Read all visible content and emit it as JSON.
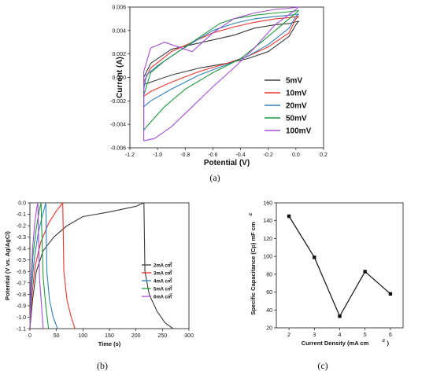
{
  "chart_data": [
    {
      "panel": "a",
      "caption": "(a)",
      "type": "line",
      "xlabel": "Potential (V)",
      "ylabel": "Current (A)",
      "xlim": [
        -1.2,
        0.2
      ],
      "ylim": [
        -0.006,
        0.006
      ],
      "xticks": [
        "-1.2",
        "-1.0",
        "-0.8",
        "-0.6",
        "-0.4",
        "-0.2",
        "0.0",
        "0.2"
      ],
      "yticks": [
        "-0.006",
        "-0.004",
        "-0.002",
        "0.000",
        "0.002",
        "0.004",
        "0.006"
      ],
      "legend_position": "bottom-right",
      "series": [
        {
          "name": "5mV",
          "color": "#3a3a3a",
          "x": [
            -1.1,
            -1.05,
            -0.9,
            -0.7,
            -0.5,
            -0.35,
            -0.2,
            -0.05,
            0.0,
            0.02,
            -0.05,
            -0.15,
            -0.3,
            -0.45,
            -0.6,
            -0.75,
            -0.9,
            -1.05,
            -1.1,
            -1.1
          ],
          "y": [
            -0.0006,
            -0.0004,
            0.0002,
            0.0008,
            0.0012,
            0.0016,
            0.0022,
            0.0035,
            0.0045,
            0.0048,
            0.0046,
            0.0045,
            0.0042,
            0.0036,
            0.0032,
            0.0028,
            0.0024,
            0.0012,
            0.0,
            -0.0006
          ]
        },
        {
          "name": "10mV",
          "color": "#e8332a",
          "x": [
            -1.1,
            -1.05,
            -0.9,
            -0.7,
            -0.5,
            -0.35,
            -0.2,
            -0.05,
            0.0,
            0.02,
            -0.05,
            -0.15,
            -0.3,
            -0.45,
            -0.6,
            -0.75,
            -0.9,
            -1.05,
            -1.1,
            -1.1
          ],
          "y": [
            -0.0016,
            -0.0012,
            -0.0004,
            0.0005,
            0.0012,
            0.0018,
            0.0026,
            0.0038,
            0.005,
            0.0052,
            0.0051,
            0.005,
            0.0047,
            0.0043,
            0.0038,
            0.003,
            0.0022,
            0.0008,
            -0.0004,
            -0.0016
          ]
        },
        {
          "name": "20mV",
          "color": "#2f7fc1",
          "x": [
            -1.1,
            -1.05,
            -0.9,
            -0.7,
            -0.5,
            -0.35,
            -0.2,
            -0.05,
            0.0,
            0.02,
            -0.05,
            -0.15,
            -0.3,
            -0.45,
            -0.6,
            -0.7,
            -0.85,
            -1.0,
            -1.08,
            -1.1,
            -1.1
          ],
          "y": [
            -0.0025,
            -0.002,
            -0.001,
            0.0002,
            0.0011,
            0.0018,
            0.0028,
            0.0042,
            0.0052,
            0.0054,
            0.0053,
            0.0052,
            0.005,
            0.0046,
            0.004,
            0.0033,
            0.0022,
            0.001,
            0.0002,
            -0.001,
            -0.0025
          ]
        },
        {
          "name": "50mV",
          "color": "#1f9a3a",
          "x": [
            -1.1,
            -1.05,
            -0.95,
            -0.8,
            -0.6,
            -0.4,
            -0.25,
            -0.1,
            0.0,
            0.02,
            -0.05,
            -0.15,
            -0.3,
            -0.45,
            -0.55,
            -0.65,
            -0.8,
            -0.95,
            -1.05,
            -1.1,
            -1.1
          ],
          "y": [
            -0.0045,
            -0.0038,
            -0.0025,
            -0.001,
            0.0004,
            0.0016,
            0.003,
            0.0045,
            0.0055,
            0.0057,
            0.0056,
            0.0055,
            0.0053,
            0.005,
            0.0046,
            0.0038,
            0.0026,
            0.0014,
            0.0004,
            -0.0015,
            -0.0045
          ]
        },
        {
          "name": "100mV",
          "color": "#a64dd6",
          "x": [
            -1.1,
            -1.02,
            -0.9,
            -0.75,
            -0.6,
            -0.45,
            -0.3,
            -0.15,
            0.0,
            0.02,
            -0.05,
            -0.15,
            -0.3,
            -0.45,
            -0.6,
            -0.75,
            -0.85,
            -0.95,
            -1.05,
            -1.1,
            -1.1
          ],
          "y": [
            -0.0054,
            -0.0052,
            -0.0042,
            -0.0025,
            -0.0008,
            0.0008,
            0.0025,
            0.0045,
            0.0058,
            0.006,
            0.0059,
            0.0058,
            0.0055,
            0.005,
            0.0038,
            0.0022,
            0.0026,
            0.003,
            0.0025,
            0.0005,
            -0.0054
          ]
        }
      ]
    },
    {
      "panel": "b",
      "caption": "(b)",
      "type": "line",
      "xlabel": "Time (s)",
      "ylabel": "Potential (V vs. Ag/AgCl)",
      "xlim": [
        0,
        300
      ],
      "ylim": [
        -1.1,
        0.0
      ],
      "xticks": [
        "0",
        "50",
        "100",
        "150",
        "200",
        "250",
        "300"
      ],
      "yticks": [
        "-1.1",
        "-1.0",
        "-0.9",
        "-0.8",
        "-0.7",
        "-0.6",
        "-0.5",
        "-0.4",
        "-0.3",
        "-0.2",
        "-0.1",
        "0.0"
      ],
      "legend_position": "center-right",
      "series": [
        {
          "name": "2mA cm",
          "superscript": "-2",
          "color": "#3a3a3a",
          "x": [
            0,
            5,
            12,
            25,
            45,
            70,
            100,
            150,
            200,
            215,
            217,
            225,
            240,
            255,
            270
          ],
          "y": [
            -1.1,
            -0.85,
            -0.6,
            -0.42,
            -0.3,
            -0.2,
            -0.12,
            -0.08,
            -0.03,
            0.0,
            -0.6,
            -0.8,
            -0.95,
            -1.05,
            -1.1
          ],
          "y_max": 0.0
        },
        {
          "name": "3mA cm",
          "superscript": "-2",
          "color": "#e8332a",
          "x": [
            0,
            4,
            10,
            20,
            35,
            50,
            62,
            64,
            70,
            78,
            85
          ],
          "y": [
            -1.1,
            -0.8,
            -0.55,
            -0.35,
            -0.18,
            -0.07,
            0.0,
            -0.6,
            -0.85,
            -1.0,
            -1.1
          ]
        },
        {
          "name": "4mA cm",
          "superscript": "-2",
          "color": "#2f7fc1",
          "x": [
            0,
            3,
            8,
            15,
            23,
            30,
            32,
            37,
            44,
            52
          ],
          "y": [
            -1.1,
            -0.75,
            -0.5,
            -0.28,
            -0.12,
            0.0,
            -0.6,
            -0.85,
            -1.0,
            -1.1
          ]
        },
        {
          "name": "5mA cm",
          "superscript": "-2",
          "color": "#1f9a3a",
          "x": [
            0,
            2,
            6,
            12,
            18,
            21,
            25,
            30,
            35
          ],
          "y": [
            -1.1,
            -0.75,
            -0.45,
            -0.22,
            -0.06,
            0.0,
            -0.65,
            -0.9,
            -1.1
          ]
        },
        {
          "name": "6mA cm",
          "superscript": "-2",
          "color": "#a64dd6",
          "x": [
            0,
            2,
            5,
            9,
            13,
            15,
            18,
            22,
            25
          ],
          "y": [
            -1.1,
            -0.7,
            -0.4,
            -0.18,
            -0.04,
            0.0,
            -0.65,
            -0.9,
            -1.1
          ]
        }
      ]
    },
    {
      "panel": "c",
      "caption": "(c)",
      "type": "line",
      "xlabel": "Current Density (mA cm",
      "xlabel_sup": "-2",
      "xlabel_end": ")",
      "ylabel": "Specific Capacitance (Cp) mF cm",
      "ylabel_sup": "-2",
      "xlim": [
        1.5,
        6.5
      ],
      "ylim": [
        20,
        160
      ],
      "xticks": [
        "2",
        "3",
        "4",
        "5",
        "6"
      ],
      "yticks": [
        "20",
        "40",
        "60",
        "80",
        "100",
        "120",
        "140",
        "160"
      ],
      "series": [
        {
          "name": "",
          "color": "#111111",
          "x": [
            2,
            3,
            4,
            5,
            6
          ],
          "y": [
            145,
            99,
            33,
            83,
            58
          ]
        }
      ]
    }
  ]
}
